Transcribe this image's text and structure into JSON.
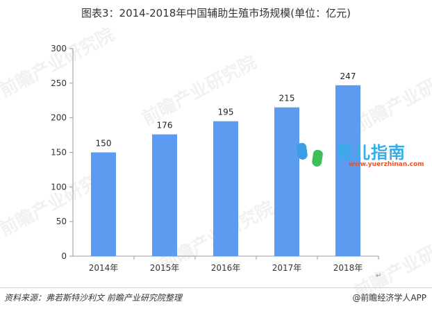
{
  "title": "图表3：2014-2018年中国辅助生殖市场规模(单位：亿元)",
  "chart_data": {
    "type": "bar",
    "categories": [
      "2014年",
      "2015年",
      "2016年",
      "2017年",
      "2018年"
    ],
    "values": [
      150,
      176,
      195,
      215,
      247
    ],
    "data_labels": [
      "150",
      "176",
      "195",
      "215",
      "247"
    ],
    "ylim": [
      0,
      300
    ],
    "yticks": [
      0,
      50,
      100,
      150,
      200,
      250,
      300
    ],
    "grid": false,
    "bar_color": "#5b9bf0"
  },
  "source": "资料来源：弗若斯特沙利文 前瞻产业研究院整理",
  "brand": "@前瞻经济学人APP",
  "watermark": {
    "logo_text": "育儿指南",
    "logo_url": "www.yuerzhinan.com",
    "text": "前瞻产业研究院"
  },
  "colors": {
    "logo_blue": "#35aee8",
    "logo_orange": "#e8542a"
  }
}
